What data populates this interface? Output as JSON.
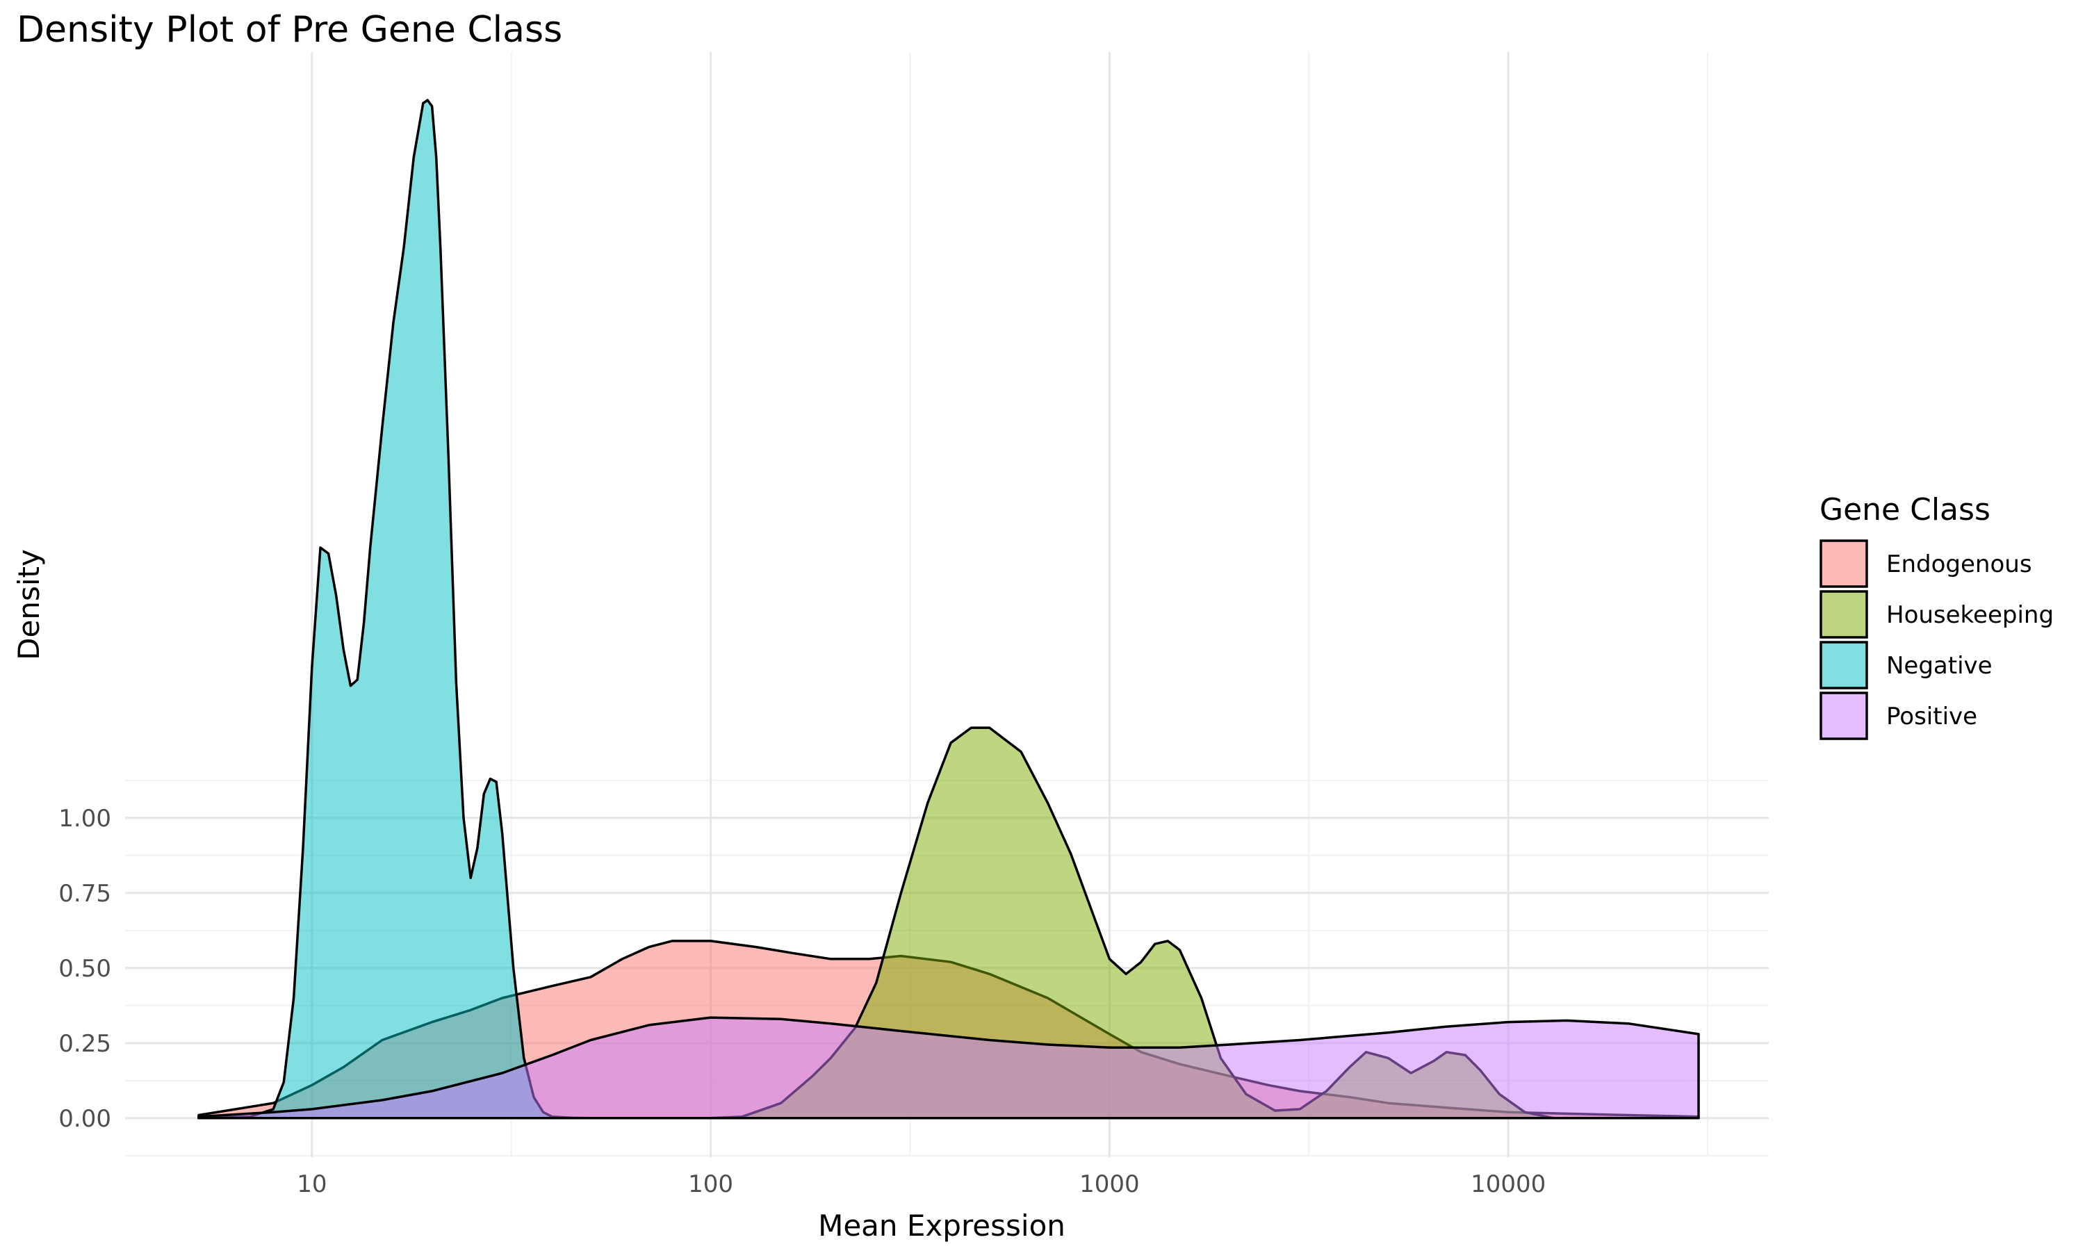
{
  "chart_data": {
    "type": "area",
    "title": "Density Plot of Pre Gene Class",
    "xlabel": "Mean Expression",
    "ylabel": "Density",
    "x_scale": "log10",
    "xlim": [
      3.4,
      45000
    ],
    "ylim": [
      -0.13,
      3.55
    ],
    "x_ticks": [
      10,
      100,
      1000,
      10000
    ],
    "x_tick_labels": [
      "10",
      "100",
      "1000",
      "10000"
    ],
    "y_ticks": [
      0,
      0.25,
      0.5,
      0.75,
      1.0
    ],
    "y_tick_labels": [
      "0.00",
      "0.25",
      "0.50",
      "0.75",
      "1.00"
    ],
    "grid": true,
    "legend": {
      "title": "Gene Class",
      "placement": "right"
    },
    "series": [
      {
        "name": "Endogenous",
        "color": "#F8766D",
        "x": [
          5.2,
          8,
          10,
          12,
          15,
          20,
          25,
          30,
          40,
          50,
          60,
          70,
          80,
          100,
          130,
          160,
          200,
          250,
          300,
          400,
          500,
          700,
          1000,
          1200,
          1500,
          2000,
          2500,
          3000,
          4000,
          5000,
          7000,
          10000,
          14000,
          20000,
          30000
        ],
        "y": [
          0.01,
          0.05,
          0.11,
          0.17,
          0.26,
          0.32,
          0.36,
          0.4,
          0.44,
          0.47,
          0.53,
          0.57,
          0.59,
          0.59,
          0.57,
          0.55,
          0.53,
          0.53,
          0.54,
          0.52,
          0.48,
          0.4,
          0.28,
          0.22,
          0.18,
          0.14,
          0.11,
          0.09,
          0.07,
          0.05,
          0.035,
          0.02,
          0.015,
          0.01,
          0.005
        ]
      },
      {
        "name": "Housekeeping",
        "color": "#7CAE00",
        "x": [
          100,
          120,
          150,
          180,
          200,
          230,
          260,
          300,
          350,
          400,
          450,
          500,
          600,
          700,
          800,
          1000,
          1100,
          1200,
          1300,
          1400,
          1500,
          1700,
          1900,
          2200,
          2600,
          3000,
          3500,
          4000,
          4400,
          5000,
          5700,
          6500,
          7000,
          7800,
          8500,
          9500,
          11000,
          13000
        ],
        "y": [
          0,
          0.005,
          0.05,
          0.14,
          0.2,
          0.3,
          0.45,
          0.75,
          1.05,
          1.25,
          1.3,
          1.3,
          1.22,
          1.05,
          0.88,
          0.53,
          0.48,
          0.52,
          0.58,
          0.59,
          0.56,
          0.4,
          0.2,
          0.08,
          0.025,
          0.03,
          0.09,
          0.17,
          0.22,
          0.2,
          0.15,
          0.19,
          0.22,
          0.21,
          0.16,
          0.08,
          0.02,
          0
        ]
      },
      {
        "name": "Negative",
        "color": "#00BFC4",
        "x": [
          5.2,
          7,
          8,
          8.5,
          9,
          9.5,
          10,
          10.5,
          11,
          11.5,
          12,
          12.5,
          13,
          13.5,
          14,
          15,
          16,
          17,
          18,
          19,
          19.5,
          20,
          20.5,
          21,
          22,
          23,
          24,
          25,
          26,
          27,
          28,
          29,
          30,
          31,
          32,
          34,
          36,
          38,
          40,
          45,
          50
        ],
        "y": [
          0,
          0.005,
          0.03,
          0.12,
          0.4,
          0.9,
          1.5,
          1.9,
          1.88,
          1.74,
          1.56,
          1.44,
          1.46,
          1.65,
          1.9,
          2.3,
          2.65,
          2.9,
          3.2,
          3.38,
          3.39,
          3.37,
          3.2,
          2.9,
          2.2,
          1.45,
          1.0,
          0.8,
          0.9,
          1.08,
          1.13,
          1.12,
          0.95,
          0.72,
          0.5,
          0.2,
          0.07,
          0.02,
          0.005,
          0.001,
          0
        ]
      },
      {
        "name": "Positive",
        "color": "#C77CFF",
        "x": [
          5.2,
          8,
          10,
          15,
          20,
          30,
          40,
          50,
          70,
          100,
          150,
          200,
          300,
          500,
          700,
          1000,
          1500,
          2000,
          3000,
          5000,
          7000,
          10000,
          14000,
          20000,
          30000
        ],
        "y": [
          0.005,
          0.02,
          0.03,
          0.06,
          0.09,
          0.15,
          0.21,
          0.26,
          0.31,
          0.335,
          0.33,
          0.315,
          0.29,
          0.26,
          0.245,
          0.235,
          0.235,
          0.245,
          0.26,
          0.285,
          0.305,
          0.32,
          0.325,
          0.315,
          0.28
        ]
      }
    ]
  }
}
